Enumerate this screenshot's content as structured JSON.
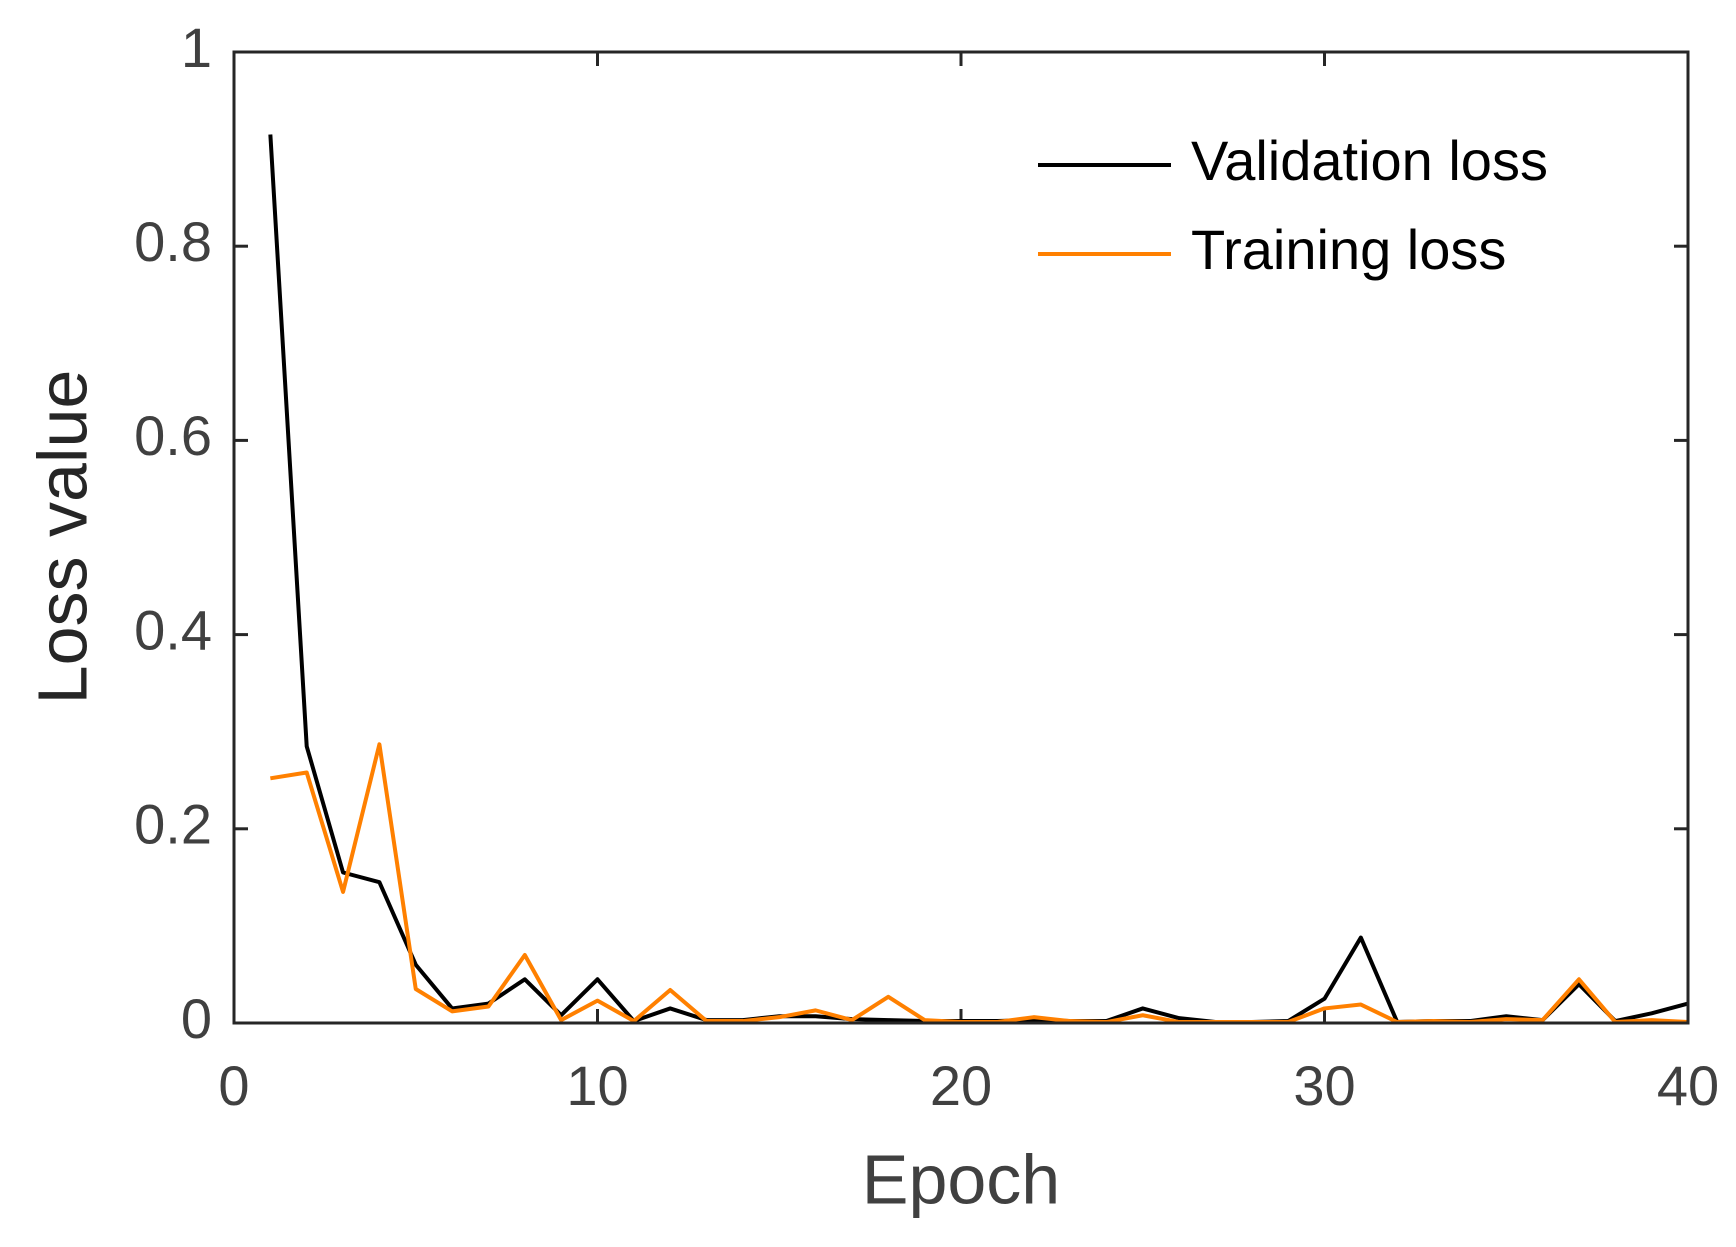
{
  "chart_data": {
    "type": "line",
    "x_label": "Epoch",
    "y_label": "Loss value",
    "x": [
      1,
      2,
      3,
      4,
      5,
      6,
      7,
      8,
      9,
      10,
      11,
      12,
      13,
      14,
      15,
      16,
      17,
      18,
      19,
      20,
      21,
      22,
      23,
      24,
      25,
      26,
      27,
      28,
      29,
      30,
      31,
      32,
      33,
      34,
      35,
      36,
      37,
      38,
      39,
      40
    ],
    "series": [
      {
        "name": "Validation loss",
        "color": "#000000",
        "values": [
          0.915,
          0.285,
          0.155,
          0.145,
          0.06,
          0.015,
          0.02,
          0.045,
          0.008,
          0.045,
          0.002,
          0.015,
          0.003,
          0.003,
          0.007,
          0.007,
          0.004,
          0.003,
          0.002,
          0.002,
          0.002,
          0.003,
          0.002,
          0.002,
          0.015,
          0.005,
          0.001,
          0.001,
          0.002,
          0.025,
          0.088,
          0.001,
          0.002,
          0.002,
          0.007,
          0.003,
          0.04,
          0.002,
          0.01,
          0.02
        ]
      },
      {
        "name": "Training loss",
        "color": "#ff8000",
        "values": [
          0.252,
          0.258,
          0.135,
          0.287,
          0.035,
          0.012,
          0.017,
          0.07,
          0.003,
          0.023,
          0.002,
          0.034,
          0.002,
          0.002,
          0.006,
          0.013,
          0.003,
          0.027,
          0.003,
          0.001,
          0.001,
          0.006,
          0.002,
          0.001,
          0.008,
          0.001,
          0.001,
          0.001,
          0.001,
          0.015,
          0.019,
          0.001,
          0.002,
          0.001,
          0.004,
          0.003,
          0.045,
          0.001,
          0.003,
          0.001
        ]
      }
    ],
    "xlim": [
      0,
      40
    ],
    "xticks": [
      0,
      10,
      20,
      30,
      40
    ],
    "ylim": [
      0,
      1
    ],
    "yticks": [
      0,
      0.2,
      0.4,
      0.6,
      0.8,
      1
    ],
    "grid": false,
    "legend": "upper right"
  }
}
